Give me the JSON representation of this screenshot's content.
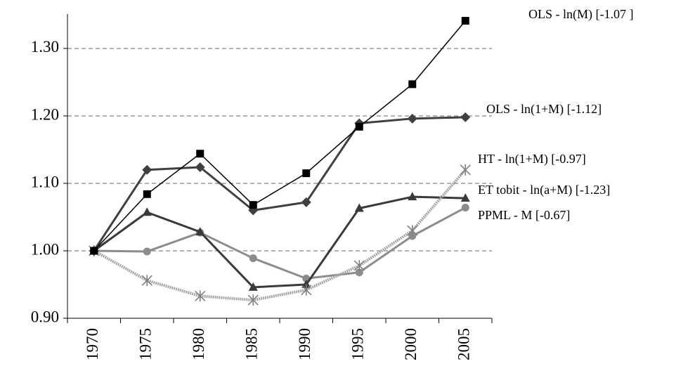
{
  "chart_data": {
    "type": "line",
    "categories": [
      "1970",
      "1975",
      "1980",
      "1985",
      "1990",
      "1995",
      "2000",
      "2005"
    ],
    "ylim": [
      0.9,
      1.351
    ],
    "yticks": [
      {
        "value": 0.9,
        "label": "0.90"
      },
      {
        "value": 1.0,
        "label": "1.00"
      },
      {
        "value": 1.1,
        "label": "1.10"
      },
      {
        "value": 1.2,
        "label": "1.20"
      },
      {
        "value": 1.3,
        "label": "1.30"
      }
    ],
    "grid": true,
    "series": [
      {
        "name": "OLS - ln(M) [-1.07 ]",
        "color": "#000000",
        "marker": "square",
        "values": [
          1.0,
          1.084,
          1.144,
          1.068,
          1.115,
          1.184,
          1.247,
          1.341
        ]
      },
      {
        "name": "OLS - ln(1+M) [-1.12]",
        "color": "#404040",
        "marker": "diamond",
        "values": [
          1.0,
          1.12,
          1.124,
          1.06,
          1.072,
          1.189,
          1.196,
          1.198
        ]
      },
      {
        "name": "HT - ln(1+M) [-0.97]",
        "color": "#a6a6a6",
        "marker": "star",
        "values": [
          1.0,
          0.956,
          0.933,
          0.927,
          0.942,
          0.978,
          1.03,
          1.12
        ]
      },
      {
        "name": "ET tobit - ln(a+M) [-1.23]",
        "color": "#3a3a3a",
        "marker": "triangle",
        "values": [
          1.0,
          1.057,
          1.028,
          0.946,
          0.95,
          1.063,
          1.08,
          1.078
        ]
      },
      {
        "name": "PPML - M [-0.67]",
        "color": "#8c8c8c",
        "marker": "circle",
        "values": [
          1.0,
          0.999,
          1.027,
          0.989,
          0.959,
          0.968,
          1.022,
          1.064
        ]
      }
    ]
  }
}
